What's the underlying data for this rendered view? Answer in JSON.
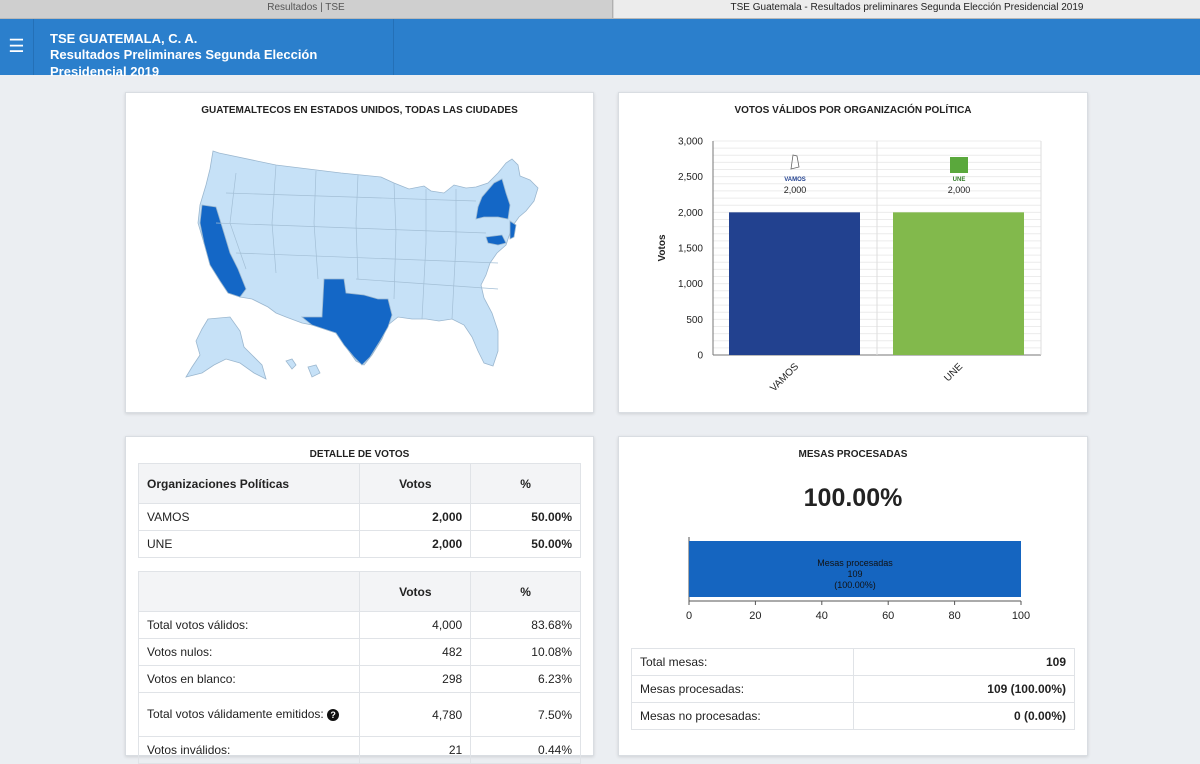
{
  "browser": {
    "tabs": [
      "Resultados | TSE",
      "TSE Guatemala - Resultados preliminares Segunda Elección Presidencial 2019"
    ]
  },
  "header": {
    "menu_icon": "☰",
    "org": "TSE GUATEMALA, C. A.",
    "subtitle": "Resultados Preliminares Segunda Elección Presidencial 2019"
  },
  "map": {
    "title": "GUATEMALTECOS EN ESTADOS UNIDOS, TODAS LAS CIUDADES",
    "base_color": "#c6e1f7",
    "highlight_color": "#1467c6"
  },
  "chart_data": [
    {
      "type": "bar",
      "title": "VOTOS VÁLIDOS POR ORGANIZACIÓN POLÍTICA",
      "ylabel": "Votos",
      "xlabel": "",
      "categories": [
        "VAMOS",
        "UNE"
      ],
      "values": [
        2000,
        2000
      ],
      "data_labels": [
        "2,000",
        "2,000"
      ],
      "logo_labels": [
        "VAMOS",
        "UNE"
      ],
      "colors": [
        "#22418f",
        "#82b94c"
      ],
      "ylim": [
        0,
        3000
      ],
      "yticks": [
        "0",
        "500",
        "1,000",
        "1,500",
        "2,000",
        "2,500",
        "3,000"
      ],
      "grid": true
    },
    {
      "type": "bar",
      "orientation": "horizontal",
      "title": "MESAS PROCESADAS",
      "categories": [
        "Mesas procesadas"
      ],
      "values": [
        100
      ],
      "bar_label": [
        "Mesas procesadas",
        "109",
        "(100.00%)"
      ],
      "xlim": [
        0,
        100
      ],
      "xticks": [
        "0",
        "20",
        "40",
        "60",
        "80",
        "100"
      ],
      "color": "#1565c0"
    }
  ],
  "detail": {
    "title": "DETALLE DE VOTOS",
    "party_headers": [
      "Organizaciones Políticas",
      "Votos",
      "%"
    ],
    "parties": [
      {
        "name": "VAMOS",
        "votes": "2,000",
        "pct": "50.00%"
      },
      {
        "name": "UNE",
        "votes": "2,000",
        "pct": "50.00%"
      }
    ],
    "totals_headers": [
      "",
      "Votos",
      "%"
    ],
    "totals": [
      {
        "label": "Total votos válidos:",
        "votes": "4,000",
        "pct": "83.68%"
      },
      {
        "label": "Votos nulos:",
        "votes": "482",
        "pct": "10.08%"
      },
      {
        "label": "Votos en blanco:",
        "votes": "298",
        "pct": "6.23%"
      },
      {
        "label": "Total votos válidamente emitidos:",
        "votes": "4,780",
        "pct": "7.50%"
      },
      {
        "label": "Votos inválidos:",
        "votes": "21",
        "pct": "0.44%"
      }
    ]
  },
  "mesas": {
    "title": "MESAS PROCESADAS",
    "percent": "100.00%",
    "rows": [
      {
        "label": "Total mesas:",
        "value": "109"
      },
      {
        "label": "Mesas procesadas:",
        "value": "109 (100.00%)"
      },
      {
        "label": "Mesas no procesadas:",
        "value": "0 (0.00%)"
      }
    ]
  }
}
